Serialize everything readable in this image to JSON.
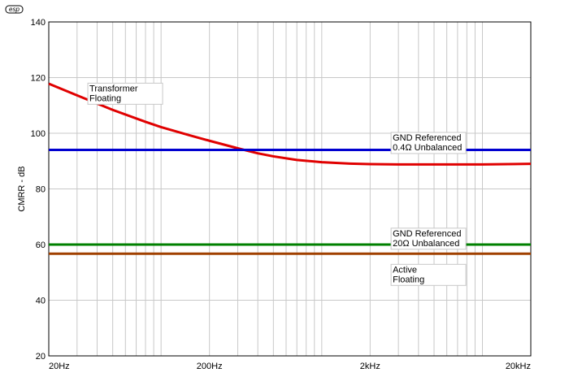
{
  "logo": "esp",
  "chart_data": {
    "type": "line",
    "title": "",
    "xlabel": "",
    "ylabel": "CMRR - dB",
    "x_scale": "log",
    "xlim": [
      20,
      20000
    ],
    "ylim": [
      20,
      140
    ],
    "grid": true,
    "x_ticks": [
      {
        "value": 20,
        "label": "20Hz"
      },
      {
        "value": 200,
        "label": "200Hz"
      },
      {
        "value": 2000,
        "label": "2kHz"
      },
      {
        "value": 20000,
        "label": "20kHz"
      }
    ],
    "y_ticks": [
      20,
      40,
      60,
      80,
      100,
      120,
      140
    ],
    "series": [
      {
        "color": "#e00000",
        "x": [
          20,
          30,
          50,
          80,
          100,
          150,
          200,
          300,
          400,
          500,
          700,
          1000,
          1500,
          2000,
          3000,
          5000,
          10000,
          20000
        ],
        "y": [
          117.8,
          113.6,
          108.4,
          104.1,
          102.2,
          99.3,
          97.3,
          94.6,
          92.8,
          91.7,
          90.4,
          89.6,
          89.1,
          88.9,
          88.8,
          88.8,
          88.8,
          89.0
        ]
      },
      {
        "color": "#0000d0",
        "x": [
          20,
          20000
        ],
        "y": [
          94,
          94
        ]
      },
      {
        "color": "#008000",
        "x": [
          20,
          20000
        ],
        "y": [
          60,
          60
        ]
      },
      {
        "color": "#a04000",
        "x": [
          20,
          20000
        ],
        "y": [
          56.7,
          56.7
        ]
      }
    ],
    "annotations": [
      {
        "lines": [
          "Transformer",
          "Floating"
        ],
        "x": 35,
        "y": 118
      },
      {
        "lines": [
          "GND Referenced",
          "0.4Ω Unbalanced"
        ],
        "x": 2700,
        "y": 100.3
      },
      {
        "lines": [
          "GND Referenced",
          "20Ω Unbalanced"
        ],
        "x": 2700,
        "y": 65.9
      },
      {
        "lines": [
          "Active",
          "Floating"
        ],
        "x": 2700,
        "y": 52.9
      }
    ]
  }
}
